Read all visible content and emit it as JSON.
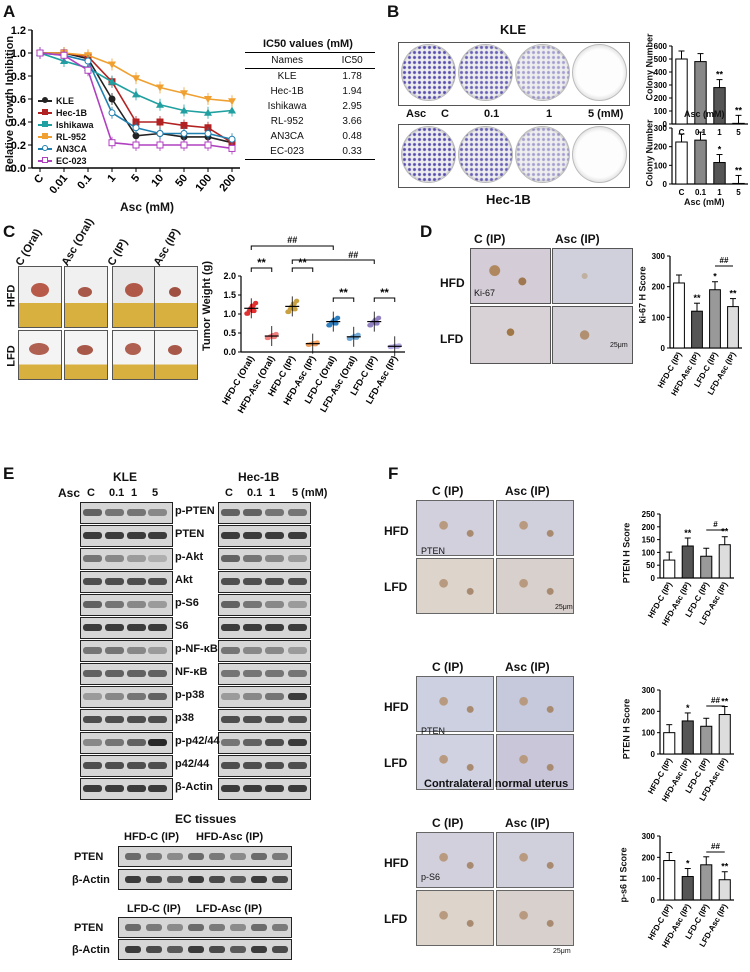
{
  "panels": {
    "a": "A",
    "b": "B",
    "c": "C",
    "d": "D",
    "e": "E",
    "f": "F"
  },
  "panel_a": {
    "ylabel": "Relative Growth Inhibition",
    "xlabel": "Asc (mM)",
    "legend": [
      "KLE",
      "Hec-1B",
      "Ishikawa",
      "RL-952",
      "AN3CA",
      "EC-023"
    ],
    "table_title": "IC50 values (mM)",
    "table_headers": [
      "Names",
      "IC50"
    ],
    "table_rows": [
      [
        "KLE",
        "1.78"
      ],
      [
        "Hec-1B",
        "1.94"
      ],
      [
        "Ishikawa",
        "2.95"
      ],
      [
        "RL-952",
        "3.66"
      ],
      [
        "AN3CA",
        "0.48"
      ],
      [
        "EC-023",
        "0.33"
      ]
    ]
  },
  "panel_b": {
    "kle_title": "KLE",
    "hec_title": "Hec-1B",
    "asc_label": "Asc",
    "conc_labels": [
      "C",
      "0.1",
      "1",
      "5 (mM)"
    ],
    "ylabel": "Colony Number",
    "xlabel": "Asc (mM)"
  },
  "panel_c": {
    "groups": [
      "C (Oral)",
      "Asc (Oral)",
      "C (IP)",
      "Asc (IP)"
    ],
    "rows": [
      "HFD",
      "LFD"
    ],
    "ylabel": "Tumor Weight (g)"
  },
  "panel_d": {
    "cols": [
      "C (IP)",
      "Asc (IP)"
    ],
    "rows": [
      "HFD",
      "LFD"
    ],
    "marker": "Ki-67",
    "scale": "25μm",
    "ylabel": "ki-67 H Score"
  },
  "panel_e": {
    "kle_title": "KLE",
    "hec_title": "Hec-1B",
    "asc_label": "Asc",
    "kle_lanes": [
      "C",
      "0.1",
      "1",
      "5"
    ],
    "hec_lanes": [
      "C",
      "0.1",
      "1",
      "5 (mM)"
    ],
    "proteins": [
      "p-PTEN",
      "PTEN",
      "p-Akt",
      "Akt",
      "p-S6",
      "S6",
      "p-NF-κB",
      "NF-κB",
      "p-p38",
      "p38",
      "p-p42/44",
      "p42/44",
      "β-Actin"
    ],
    "ec_title": "EC tissues",
    "hfd_groups": [
      "HFD-C (IP)",
      "HFD-Asc (IP)"
    ],
    "lfd_groups": [
      "LFD-C (IP)",
      "LFD-Asc (IP)"
    ],
    "tissue_proteins": [
      "PTEN",
      "β-Actin"
    ]
  },
  "panel_f": {
    "cols": [
      "C (IP)",
      "Asc (IP)"
    ],
    "rows": [
      "HFD",
      "LFD"
    ],
    "marker1": "PTEN",
    "marker2": "PTEN",
    "marker3": "p-S6",
    "scale": "25μm",
    "normal_caption": "Contralateral normal uterus",
    "ylabel1": "PTEN H Score",
    "ylabel2": "PTEN H Score",
    "ylabel3": "p-s6 H Score"
  },
  "chart_data": [
    {
      "type": "line",
      "title": "A",
      "x": [
        "C",
        "0.01",
        "0.1",
        "1",
        "5",
        "10",
        "50",
        "100",
        "200"
      ],
      "xlabel": "Asc (mM)",
      "ylabel": "Relative Growth Inhibition",
      "ylim": [
        0,
        1.2
      ],
      "yticks": [
        "0.0",
        "0.2",
        "0.4",
        "0.6",
        "0.8",
        "1.0",
        "1.2"
      ],
      "series": [
        {
          "name": "KLE",
          "color": "#222222",
          "marker": "circle",
          "values": [
            1.0,
            1.0,
            0.95,
            0.6,
            0.28,
            0.3,
            0.27,
            0.27,
            0.22
          ]
        },
        {
          "name": "Hec-1B",
          "color": "#b22222",
          "marker": "square",
          "values": [
            1.0,
            1.0,
            0.97,
            0.75,
            0.4,
            0.4,
            0.37,
            0.35,
            0.22
          ]
        },
        {
          "name": "Ishikawa",
          "color": "#20a0a0",
          "marker": "triangle",
          "values": [
            1.0,
            0.93,
            0.87,
            0.75,
            0.64,
            0.55,
            0.5,
            0.48,
            0.5
          ]
        },
        {
          "name": "RL-952",
          "color": "#f0a030",
          "marker": "down-triangle",
          "values": [
            1.0,
            1.0,
            0.98,
            0.9,
            0.78,
            0.7,
            0.65,
            0.6,
            0.58
          ]
        },
        {
          "name": "AN3CA",
          "color": "#2080b0",
          "marker": "circle-open",
          "values": [
            1.0,
            0.98,
            0.93,
            0.48,
            0.35,
            0.3,
            0.3,
            0.3,
            0.25
          ]
        },
        {
          "name": "EC-023",
          "color": "#b040c0",
          "marker": "square-open",
          "values": [
            1.0,
            0.98,
            0.85,
            0.22,
            0.2,
            0.2,
            0.2,
            0.2,
            0.17
          ]
        }
      ]
    },
    {
      "type": "bar",
      "title": "B KLE",
      "categories": [
        "C",
        "0.1",
        "1",
        "5"
      ],
      "values": [
        500,
        480,
        280,
        5
      ],
      "ylim": [
        0,
        600
      ],
      "yticks": [
        "0",
        "100",
        "200",
        "300",
        "400",
        "500",
        "600"
      ],
      "annotations": [
        "",
        "",
        "**",
        "**"
      ]
    },
    {
      "type": "bar",
      "title": "B Hec-1B",
      "categories": [
        "C",
        "0.1",
        "1",
        "5"
      ],
      "values": [
        225,
        235,
        115,
        3
      ],
      "ylim": [
        0,
        300
      ],
      "yticks": [
        "0",
        "100",
        "200",
        "300"
      ],
      "annotations": [
        "",
        "",
        "*",
        "**"
      ]
    },
    {
      "type": "scatter",
      "title": "C",
      "categories": [
        "HFD-C (Oral)",
        "HFD-Asc (Oral)",
        "HFD-C (IP)",
        "HFD-Asc (IP)",
        "LFD-C (Oral)",
        "LFD-Asc (Oral)",
        "LFD-C (IP)",
        "LFD-Asc (IP)"
      ],
      "values": [
        1.15,
        0.42,
        1.2,
        0.22,
        0.8,
        0.4,
        0.8,
        0.15
      ],
      "colors": [
        "#e03030",
        "#f08080",
        "#c8a040",
        "#f0a060",
        "#3080c0",
        "#70a8d8",
        "#9080c0",
        "#b0a8e0"
      ],
      "ylim": [
        0,
        2.0
      ],
      "yticks": [
        "0.0",
        "0.5",
        "1.0",
        "1.5",
        "2.0"
      ],
      "annotations": [
        "**",
        "**",
        "**",
        "**",
        "##",
        "##"
      ]
    },
    {
      "type": "bar",
      "title": "D",
      "categories": [
        "HFD-C (IP)",
        "HFD-Asc (IP)",
        "LFD-C (IP)",
        "LFD-Asc (IP)"
      ],
      "values": [
        212,
        120,
        190,
        135
      ],
      "ylim": [
        0,
        300
      ],
      "yticks": [
        "0",
        "100",
        "200",
        "300"
      ],
      "annotations": [
        "",
        "**",
        "*",
        "**"
      ]
    },
    {
      "type": "bar",
      "title": "F1",
      "categories": [
        "HFD-C (IP)",
        "HFD-Asc (IP)",
        "LFD-C (IP)",
        "LFD-Asc (IP)"
      ],
      "values": [
        70,
        125,
        85,
        130
      ],
      "ylim": [
        0,
        250
      ],
      "yticks": [
        "0",
        "50",
        "100",
        "150",
        "200",
        "250"
      ],
      "annotations": [
        "",
        "**",
        "",
        "**"
      ]
    },
    {
      "type": "bar",
      "title": "F2",
      "categories": [
        "HFD-C (IP)",
        "HFD-Asc (IP)",
        "LFD-C (IP)",
        "LFD-Asc (IP)"
      ],
      "values": [
        100,
        155,
        130,
        185
      ],
      "ylim": [
        0,
        300
      ],
      "yticks": [
        "0",
        "100",
        "200",
        "300"
      ],
      "annotations": [
        "",
        "*",
        "",
        "**"
      ]
    },
    {
      "type": "bar",
      "title": "F3",
      "categories": [
        "HFD-C (IP)",
        "HFD-Asc (IP)",
        "LFD-C (IP)",
        "LFD-Asc (IP)"
      ],
      "values": [
        185,
        110,
        165,
        95
      ],
      "ylim": [
        0,
        300
      ],
      "yticks": [
        "0",
        "100",
        "200",
        "300"
      ],
      "annotations": [
        "",
        "*",
        "",
        "**"
      ]
    }
  ]
}
